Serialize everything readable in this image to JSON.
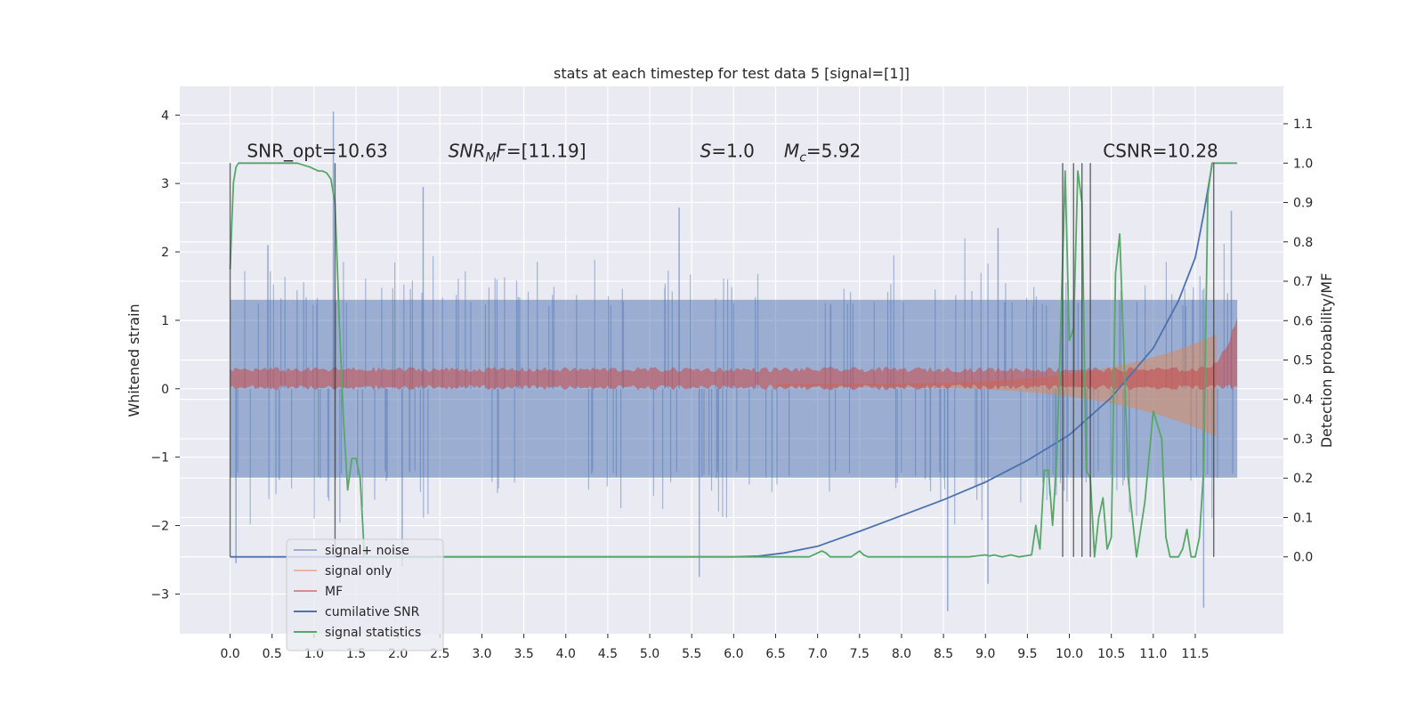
{
  "chart_data": {
    "type": "line",
    "title": "stats at each timestep for test data 5 [signal=[1]]",
    "ylabel": "Whitened strain",
    "ylabel_right": "Detection probability/MF",
    "xlim": [
      -0.6,
      12.55
    ],
    "ylim": [
      -3.58,
      4.42
    ],
    "ylim_right": [
      -0.195,
      1.195
    ],
    "x_ticks": [
      0.0,
      0.5,
      1.0,
      1.5,
      2.0,
      2.5,
      3.0,
      3.5,
      4.0,
      4.5,
      5.0,
      5.5,
      6.0,
      6.5,
      7.0,
      7.5,
      8.0,
      8.5,
      9.0,
      9.5,
      10.0,
      10.5,
      11.0,
      11.5
    ],
    "x_tick_labels": [
      "0.0",
      "0.5",
      "1.0",
      "1.5",
      "2.0",
      "2.5",
      "3.0",
      "3.5",
      "4.0",
      "4.5",
      "5.0",
      "5.5",
      "6.0",
      "6.5",
      "7.0",
      "7.5",
      "8.0",
      "8.5",
      "9.0",
      "9.5",
      "10.0",
      "10.5",
      "11.0",
      "11.5"
    ],
    "y_ticks": [
      4,
      3,
      2,
      1,
      0,
      -1,
      -2,
      -3
    ],
    "y_tick_labels": [
      "4",
      "3",
      "2",
      "1",
      "0",
      "−1",
      "−2",
      "−3"
    ],
    "y_right_ticks": [
      1.1,
      1.0,
      0.9,
      0.8,
      0.7,
      0.6,
      0.5,
      0.4,
      0.3,
      0.2,
      0.1,
      0.0
    ],
    "y_right_tick_labels": [
      "1.1",
      "1.0",
      "0.9",
      "0.8",
      "0.7",
      "0.6",
      "0.5",
      "0.4",
      "0.3",
      "0.2",
      "0.1",
      "0.0"
    ],
    "grid": true,
    "legend_placement": "lower-left",
    "annotations": [
      {
        "text": "SNR_opt=10.63",
        "x": 0.2,
        "y_right": 1.015
      },
      {
        "text": "SNR_MF=[11.19]",
        "x": 2.6,
        "y_right": 1.015,
        "math": "mf"
      },
      {
        "text": "S=1.0",
        "x": 5.6,
        "y_right": 1.015,
        "math": "s"
      },
      {
        "text": "M_c=5.92",
        "x": 6.6,
        "y_right": 1.015,
        "math": "mc"
      },
      {
        "text": "CSNR=10.28",
        "x": 10.4,
        "y_right": 1.015
      }
    ],
    "series": [
      {
        "name": "signal+ noise",
        "color": "#4c72b0",
        "alpha": 0.5,
        "axis": "left",
        "kind": "noise",
        "envelope": {
          "x": [
            0,
            12
          ],
          "upper": [
            1.3,
            1.3
          ],
          "lower": [
            -1.3,
            -1.3
          ]
        },
        "spikes": [
          [
            1.23,
            4.05
          ],
          [
            0.45,
            2.1
          ],
          [
            2.3,
            2.95
          ],
          [
            5.35,
            2.65
          ],
          [
            9.15,
            2.35
          ],
          [
            11.93,
            2.6
          ],
          [
            8.55,
            -3.25
          ],
          [
            11.6,
            -3.2
          ],
          [
            9.03,
            -2.85
          ],
          [
            5.59,
            -2.75
          ],
          [
            0.07,
            -2.55
          ],
          [
            2.05,
            -2.6
          ]
        ]
      },
      {
        "name": "signal only",
        "color": "#dd8452",
        "alpha": 0.5,
        "axis": "left",
        "kind": "chirp",
        "start": 6.5,
        "end": 11.8,
        "max_amp": 0.75
      },
      {
        "name": "MF",
        "color": "#c44e52",
        "alpha": 0.6,
        "axis": "left",
        "kind": "band",
        "center": 0.15,
        "half_width": 0.13,
        "rise_start": 11.45,
        "rise_top": 1.05
      },
      {
        "name": "cumilative SNR",
        "color": "#4c72b0",
        "alpha": 1.0,
        "axis": "right",
        "x": [
          0,
          6.0,
          6.3,
          6.6,
          7.0,
          7.5,
          8.0,
          8.5,
          9.0,
          9.5,
          10.0,
          10.5,
          11.0,
          11.3,
          11.5,
          11.6,
          11.7
        ],
        "y": [
          0,
          0.0,
          0.002,
          0.01,
          0.027,
          0.065,
          0.105,
          0.145,
          0.19,
          0.245,
          0.31,
          0.405,
          0.53,
          0.65,
          0.76,
          0.87,
          0.995
        ]
      },
      {
        "name": "signal statistics",
        "color": "#55a868",
        "alpha": 1.0,
        "axis": "right",
        "x": [
          0,
          0.02,
          0.04,
          0.07,
          0.1,
          0.2,
          0.5,
          0.8,
          0.95,
          1.05,
          1.1,
          1.15,
          1.2,
          1.25,
          1.3,
          1.35,
          1.4,
          1.45,
          1.5,
          1.55,
          1.6,
          1.7,
          1.8,
          2.5,
          4,
          5,
          6,
          6.9,
          7.05,
          7.1,
          7.15,
          7.2,
          7.4,
          7.5,
          7.55,
          7.6,
          7.8,
          8.5,
          8.8,
          9.0,
          9.05,
          9.1,
          9.2,
          9.3,
          9.4,
          9.55,
          9.6,
          9.65,
          9.7,
          9.75,
          9.8,
          9.85,
          9.9,
          9.95,
          10.0,
          10.05,
          10.1,
          10.15,
          10.2,
          10.25,
          10.3,
          10.35,
          10.4,
          10.45,
          10.5,
          10.55,
          10.6,
          10.7,
          10.8,
          10.9,
          11.0,
          11.1,
          11.15,
          11.2,
          11.3,
          11.35,
          11.4,
          11.45,
          11.5,
          11.55,
          11.6,
          11.65,
          11.7,
          11.75,
          11.8,
          11.85,
          11.9,
          12.0
        ],
        "y": [
          0.73,
          0.85,
          0.95,
          0.99,
          1.0,
          1.0,
          1.0,
          1.0,
          0.99,
          0.98,
          0.98,
          0.975,
          0.96,
          0.9,
          0.6,
          0.35,
          0.17,
          0.25,
          0.25,
          0.2,
          0.0,
          0.0,
          0.0,
          0.0,
          0.0,
          0.0,
          0.0,
          0.0,
          0.015,
          0.01,
          0.0,
          0.0,
          0.0,
          0.015,
          0.005,
          0.0,
          0.0,
          0.0,
          0.0,
          0.005,
          0.002,
          0.005,
          0.0,
          0.005,
          0.0,
          0.005,
          0.08,
          0.02,
          0.22,
          0.22,
          0.08,
          0.25,
          0.6,
          0.98,
          0.55,
          0.58,
          0.98,
          0.9,
          0.22,
          0.2,
          0.0,
          0.1,
          0.15,
          0.02,
          0.05,
          0.72,
          0.82,
          0.2,
          0.0,
          0.14,
          0.37,
          0.3,
          0.05,
          0.0,
          0.0,
          0.02,
          0.07,
          0.0,
          0.0,
          0.05,
          0.22,
          0.92,
          1.0,
          1.0,
          1.0,
          1.0,
          1.0,
          1.0
        ]
      }
    ],
    "vlines": [
      0.0,
      1.25,
      9.92,
      10.05,
      10.15,
      10.25,
      11.72
    ]
  }
}
